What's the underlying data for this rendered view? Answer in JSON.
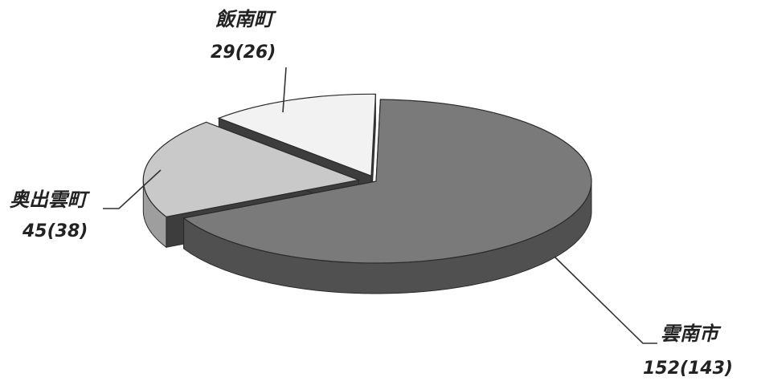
{
  "chart_data": {
    "type": "pie",
    "style": "3d-exploded",
    "categories": [
      "雲南市",
      "奥出雲町",
      "飯南町"
    ],
    "values": [
      152,
      45,
      29
    ],
    "values_in_parentheses": [
      143,
      38,
      26
    ],
    "labels": [
      {
        "name": "雲南市",
        "value_text": "152(143)"
      },
      {
        "name": "奥出雲町",
        "value_text": "45(38)"
      },
      {
        "name": "飯南町",
        "value_text": "29(26)"
      }
    ],
    "colors": {
      "slices": [
        "#7a7a7a",
        "#c9c9c9",
        "#f2f2f2"
      ],
      "sides": [
        "#505050",
        "#9e9e9e",
        "#d8d8d8"
      ],
      "gap": "#3d3d3d"
    },
    "legend": "none"
  }
}
